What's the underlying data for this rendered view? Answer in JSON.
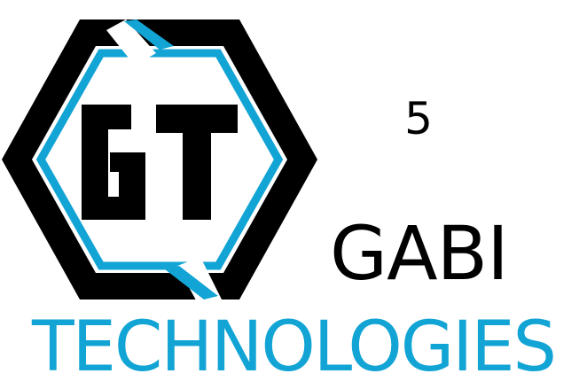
{
  "logo": {
    "monogram": "GT",
    "icon": "hexagon-logo-icon",
    "colors": {
      "primary": "#000000",
      "accent": "#11a4d4",
      "background": "#ffffff"
    }
  },
  "number_label": "5",
  "brand": {
    "name": "GABI",
    "subtitle": "TECHNOLOGIES"
  }
}
